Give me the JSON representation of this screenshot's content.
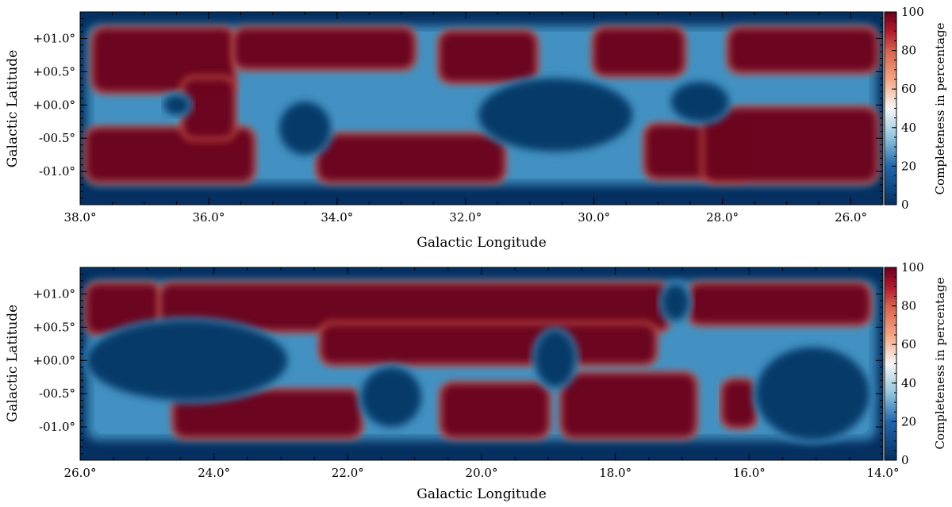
{
  "colors": {
    "low": "#053061",
    "mid_low": "#4393c3",
    "mid": "#f7f7f7",
    "mid_high": "#d6604d",
    "high": "#67001f"
  },
  "chart_data": [
    {
      "type": "heatmap",
      "title": "",
      "xlabel": "Galactic Longitude",
      "ylabel": "Galactic Latitude",
      "xlim": [
        38.0,
        25.5
      ],
      "ylim": [
        -1.5,
        1.4
      ],
      "x_ticks": [
        {
          "value": 38.0,
          "label": "38.0°"
        },
        {
          "value": 36.0,
          "label": "36.0°"
        },
        {
          "value": 34.0,
          "label": "34.0°"
        },
        {
          "value": 32.0,
          "label": "32.0°"
        },
        {
          "value": 30.0,
          "label": "30.0°"
        },
        {
          "value": 28.0,
          "label": "28.0°"
        },
        {
          "value": 26.0,
          "label": "26.0°"
        }
      ],
      "y_ticks": [
        {
          "value": 1.0,
          "label": "+01.0°"
        },
        {
          "value": 0.5,
          "label": "+00.5°"
        },
        {
          "value": 0.0,
          "label": "+00.0°"
        },
        {
          "value": -0.5,
          "label": "-00.5°"
        },
        {
          "value": -1.0,
          "label": "-01.0°"
        }
      ],
      "colorbar": {
        "label": "Completeness in percentage",
        "range": [
          0,
          100
        ],
        "ticks": [
          {
            "value": 0,
            "label": "0"
          },
          {
            "value": 20,
            "label": "20"
          },
          {
            "value": 40,
            "label": "40"
          },
          {
            "value": 60,
            "label": "60"
          },
          {
            "value": 80,
            "label": "80"
          },
          {
            "value": 100,
            "label": "100"
          }
        ]
      },
      "survey_region": {
        "b_min": -1.2,
        "b_max": 1.2
      },
      "high_completeness_regions": [
        {
          "l_from": 37.8,
          "l_to": 35.6,
          "b_from": 0.2,
          "b_to": 1.15
        },
        {
          "l_from": 35.6,
          "l_to": 32.8,
          "b_from": 0.55,
          "b_to": 1.15
        },
        {
          "l_from": 32.4,
          "l_to": 30.9,
          "b_from": 0.35,
          "b_to": 1.1
        },
        {
          "l_from": 30.0,
          "l_to": 28.6,
          "b_from": 0.45,
          "b_to": 1.15
        },
        {
          "l_from": 27.9,
          "l_to": 25.6,
          "b_from": 0.5,
          "b_to": 1.15
        },
        {
          "l_from": 37.9,
          "l_to": 35.3,
          "b_from": -1.15,
          "b_to": -0.35
        },
        {
          "l_from": 36.4,
          "l_to": 35.6,
          "b_from": -0.5,
          "b_to": 0.4
        },
        {
          "l_from": 34.3,
          "l_to": 31.4,
          "b_from": -1.15,
          "b_to": -0.45
        },
        {
          "l_from": 29.2,
          "l_to": 27.6,
          "b_from": -1.1,
          "b_to": -0.3
        },
        {
          "l_from": 28.3,
          "l_to": 25.6,
          "b_from": -1.15,
          "b_to": -0.05
        }
      ],
      "low_completeness_regions": [
        {
          "l_from": 31.8,
          "l_to": 29.4,
          "b_from": -0.7,
          "b_to": 0.4
        },
        {
          "l_from": 34.9,
          "l_to": 34.1,
          "b_from": -0.75,
          "b_to": 0.05
        },
        {
          "l_from": 36.7,
          "l_to": 36.3,
          "b_from": -0.15,
          "b_to": 0.15
        },
        {
          "l_from": 28.8,
          "l_to": 27.9,
          "b_from": -0.25,
          "b_to": 0.35
        }
      ]
    },
    {
      "type": "heatmap",
      "title": "",
      "xlabel": "Galactic Longitude",
      "ylabel": "Galactic Latitude",
      "xlim": [
        26.0,
        14.0
      ],
      "ylim": [
        -1.5,
        1.4
      ],
      "x_ticks": [
        {
          "value": 26.0,
          "label": "26.0°"
        },
        {
          "value": 24.0,
          "label": "24.0°"
        },
        {
          "value": 22.0,
          "label": "22.0°"
        },
        {
          "value": 20.0,
          "label": "20.0°"
        },
        {
          "value": 18.0,
          "label": "18.0°"
        },
        {
          "value": 16.0,
          "label": "16.0°"
        },
        {
          "value": 14.0,
          "label": "14.0°"
        }
      ],
      "y_ticks": [
        {
          "value": 1.0,
          "label": "+01.0°"
        },
        {
          "value": 0.5,
          "label": "+00.5°"
        },
        {
          "value": 0.0,
          "label": "+00.0°"
        },
        {
          "value": -0.5,
          "label": "-00.5°"
        },
        {
          "value": -1.0,
          "label": "-01.0°"
        }
      ],
      "colorbar": {
        "label": "Completeness in percentage",
        "range": [
          0,
          100
        ],
        "ticks": [
          {
            "value": 0,
            "label": "0"
          },
          {
            "value": 20,
            "label": "20"
          },
          {
            "value": 40,
            "label": "40"
          },
          {
            "value": 60,
            "label": "60"
          },
          {
            "value": 80,
            "label": "80"
          },
          {
            "value": 100,
            "label": "100"
          }
        ]
      },
      "survey_region": {
        "b_min": -1.2,
        "b_max": 1.2
      },
      "high_completeness_regions": [
        {
          "l_from": 25.9,
          "l_to": 24.8,
          "b_from": 0.4,
          "b_to": 1.15
        },
        {
          "l_from": 24.8,
          "l_to": 17.2,
          "b_from": 0.45,
          "b_to": 1.15
        },
        {
          "l_from": 22.4,
          "l_to": 17.4,
          "b_from": -0.05,
          "b_to": 0.55
        },
        {
          "l_from": 24.6,
          "l_to": 21.8,
          "b_from": -1.15,
          "b_to": -0.45
        },
        {
          "l_from": 20.6,
          "l_to": 19.0,
          "b_from": -1.15,
          "b_to": -0.35
        },
        {
          "l_from": 18.8,
          "l_to": 16.8,
          "b_from": -1.15,
          "b_to": -0.2
        },
        {
          "l_from": 16.9,
          "l_to": 14.2,
          "b_from": 0.55,
          "b_to": 1.15
        },
        {
          "l_from": 16.4,
          "l_to": 15.9,
          "b_from": -1.0,
          "b_to": -0.3
        }
      ],
      "low_completeness_regions": [
        {
          "l_from": 25.9,
          "l_to": 22.9,
          "b_from": -0.6,
          "b_to": 0.6
        },
        {
          "l_from": 15.9,
          "l_to": 14.2,
          "b_from": -1.2,
          "b_to": 0.2
        },
        {
          "l_from": 21.8,
          "l_to": 20.9,
          "b_from": -1.0,
          "b_to": -0.1
        },
        {
          "l_from": 19.2,
          "l_to": 18.6,
          "b_from": -0.4,
          "b_to": 0.45
        },
        {
          "l_from": 17.3,
          "l_to": 16.9,
          "b_from": 0.6,
          "b_to": 1.15
        }
      ]
    }
  ]
}
